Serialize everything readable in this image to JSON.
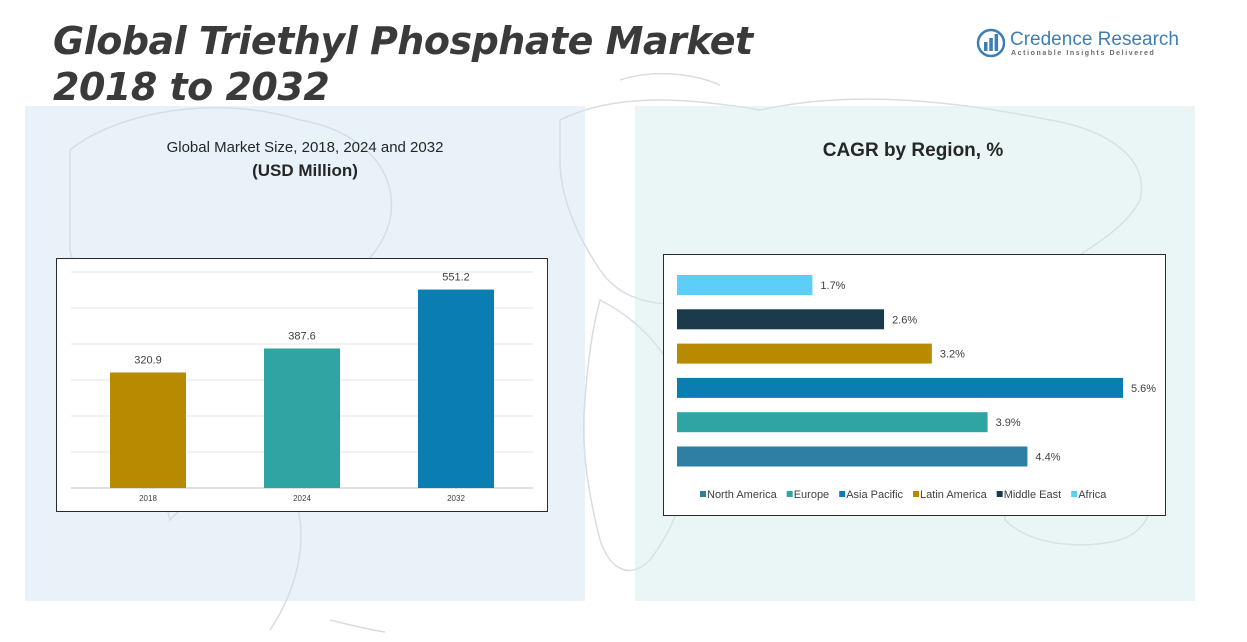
{
  "header": {
    "title_line1": "Global Triethyl Phosphate Market",
    "title_line2": "2018 to 2032"
  },
  "logo": {
    "name": "Credence Research",
    "tagline": "Actionable Insights Delivered"
  },
  "left_panel": {
    "title": "Global Market Size, 2018, 2024 and 2032",
    "subtitle": "(USD Million)"
  },
  "right_panel": {
    "title": "CAGR by Region, %"
  },
  "chart_data": [
    {
      "type": "bar",
      "title": "Global Market Size, 2018, 2024 and 2032",
      "subtitle": "(USD Million)",
      "categories": [
        "2018",
        "2024",
        "2032"
      ],
      "values": [
        320.9,
        387.6,
        551.2
      ],
      "labels": [
        "320.9",
        "387.6",
        "551.2"
      ],
      "colors": [
        "#b88a00",
        "#2fa5a3",
        "#0a7db2"
      ],
      "ylim": [
        0,
        600
      ],
      "grid": true,
      "xlabel": "",
      "ylabel": ""
    },
    {
      "type": "bar",
      "orientation": "horizontal",
      "title": "CAGR by Region, %",
      "series": [
        {
          "name": "Africa",
          "value": 1.7,
          "label": "1.7%",
          "color": "#5bcff7"
        },
        {
          "name": "Middle East",
          "value": 2.6,
          "label": "2.6%",
          "color": "#1b3a4b"
        },
        {
          "name": "Latin America",
          "value": 3.2,
          "label": "3.2%",
          "color": "#b88a00"
        },
        {
          "name": "Asia Pacific",
          "value": 5.6,
          "label": "5.6%",
          "color": "#0a7db2"
        },
        {
          "name": "Europe",
          "value": 3.9,
          "label": "3.9%",
          "color": "#2fa5a3"
        },
        {
          "name": "North America",
          "value": 4.4,
          "label": "4.4%",
          "color": "#2e7fa3"
        }
      ],
      "legend": [
        {
          "name": "North America",
          "color": "#2e7fa3"
        },
        {
          "name": "Europe",
          "color": "#2fa5a3"
        },
        {
          "name": "Asia Pacific",
          "color": "#0a7db2"
        },
        {
          "name": "Latin America",
          "color": "#b88a00"
        },
        {
          "name": "Middle East",
          "color": "#1b3a4b"
        },
        {
          "name": "Africa",
          "color": "#5bcff7"
        }
      ],
      "legend_position": "bottom",
      "xlim": [
        0,
        5.6
      ]
    }
  ]
}
